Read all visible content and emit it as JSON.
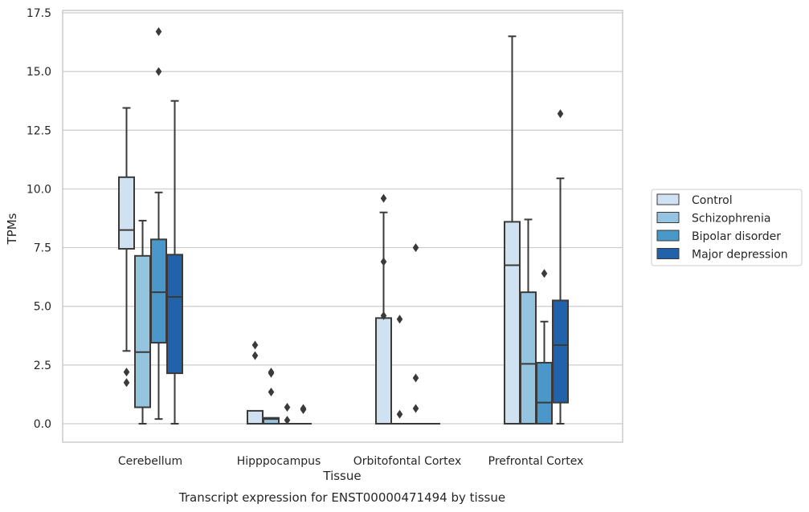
{
  "chart_data": {
    "type": "box",
    "title": "Transcript expression for ENST00000471494 by tissue",
    "xlabel": "Tissue",
    "ylabel": "TPMs",
    "ylim": [
      -0.8,
      17.6
    ],
    "yticks": [
      "0.0",
      "2.5",
      "5.0",
      "7.5",
      "10.0",
      "12.5",
      "15.0",
      "17.5"
    ],
    "ytick_values": [
      0,
      2.5,
      5,
      7.5,
      10,
      12.5,
      15,
      17.5
    ],
    "grid": "horizontal",
    "legend_position": "right",
    "categories": [
      "Cerebellum",
      "Hipppocampus",
      "Orbitofontal Cortex",
      "Prefrontal Cortex"
    ],
    "series": [
      {
        "name": "Control",
        "color": "#d0e1f2",
        "boxes": [
          {
            "whisker_low": 3.1,
            "q1": 7.45,
            "median": 8.25,
            "q3": 10.5,
            "whisker_high": 13.45,
            "outliers": [
              2.2,
              1.75
            ]
          },
          {
            "whisker_low": 0,
            "q1": 0,
            "median": 0,
            "q3": 0.55,
            "whisker_high": 0.55,
            "outliers": [
              3.35,
              2.9
            ]
          },
          {
            "whisker_low": 0,
            "q1": 0,
            "median": 0,
            "q3": 4.5,
            "whisker_high": 9.0,
            "outliers": [
              9.6,
              6.9,
              4.6
            ]
          },
          {
            "whisker_low": 0,
            "q1": 0,
            "median": 6.75,
            "q3": 8.6,
            "whisker_high": 16.5,
            "outliers": []
          }
        ]
      },
      {
        "name": "Schizophrenia",
        "color": "#94c4df",
        "boxes": [
          {
            "whisker_low": 0,
            "q1": 0.7,
            "median": 3.05,
            "q3": 7.15,
            "whisker_high": 8.65,
            "outliers": []
          },
          {
            "whisker_low": 0,
            "q1": 0,
            "median": 0.2,
            "q3": 0.25,
            "whisker_high": 0.25,
            "outliers": [
              2.2,
              2.15,
              1.35
            ]
          },
          {
            "whisker_low": 0,
            "q1": 0,
            "median": 0,
            "q3": 0,
            "whisker_high": 0,
            "outliers": [
              4.45,
              0.4
            ]
          },
          {
            "whisker_low": 0,
            "q1": 0,
            "median": 2.55,
            "q3": 5.6,
            "whisker_high": 8.7,
            "outliers": []
          }
        ]
      },
      {
        "name": "Bipolar disorder",
        "color": "#4a98c9",
        "boxes": [
          {
            "whisker_low": 0.2,
            "q1": 3.45,
            "median": 5.6,
            "q3": 7.85,
            "whisker_high": 9.85,
            "outliers": [
              16.7,
              15.0
            ]
          },
          {
            "whisker_low": 0,
            "q1": 0,
            "median": 0,
            "q3": 0,
            "whisker_high": 0,
            "outliers": [
              0.7,
              0.15
            ]
          },
          {
            "whisker_low": 0,
            "q1": 0,
            "median": 0,
            "q3": 0,
            "whisker_high": 0,
            "outliers": [
              7.5,
              1.95,
              0.65
            ]
          },
          {
            "whisker_low": 0,
            "q1": 0,
            "median": 0.9,
            "q3": 2.6,
            "whisker_high": 4.35,
            "outliers": [
              6.4
            ]
          }
        ]
      },
      {
        "name": "Major depression",
        "color": "#2163aa",
        "boxes": [
          {
            "whisker_low": 0,
            "q1": 2.15,
            "median": 5.4,
            "q3": 7.2,
            "whisker_high": 13.75,
            "outliers": []
          },
          {
            "whisker_low": 0,
            "q1": 0,
            "median": 0,
            "q3": 0,
            "whisker_high": 0,
            "outliers": [
              0.65,
              0.6
            ]
          },
          {
            "whisker_low": 0,
            "q1": 0,
            "median": 0,
            "q3": 0,
            "whisker_high": 0,
            "outliers": []
          },
          {
            "whisker_low": 0,
            "q1": 0.9,
            "median": 3.35,
            "q3": 5.25,
            "whisker_high": 10.45,
            "outliers": [
              13.2
            ]
          }
        ]
      }
    ]
  }
}
